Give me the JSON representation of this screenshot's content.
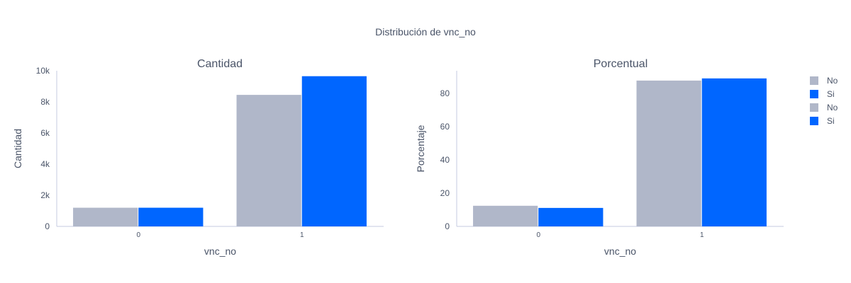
{
  "title": "Distribución de vnc_no",
  "colors": {
    "No": "#b0b7c9",
    "Si": "#0066ff",
    "axis": "#c5cbe0",
    "text": "#4a5468"
  },
  "legend": [
    {
      "label": "No",
      "color": "#b0b7c9"
    },
    {
      "label": "Si",
      "color": "#0066ff"
    },
    {
      "label": "No",
      "color": "#b0b7c9"
    },
    {
      "label": "Si",
      "color": "#0066ff"
    }
  ],
  "chart_data": [
    {
      "type": "bar",
      "title": "Cantidad",
      "xlabel": "vnc_no",
      "ylabel": "Cantidad",
      "categories": [
        "0",
        "1"
      ],
      "series": [
        {
          "name": "No",
          "values": [
            1200,
            8450
          ]
        },
        {
          "name": "Si",
          "values": [
            1200,
            9650
          ]
        }
      ],
      "ylim": [
        0,
        10000
      ],
      "yticks": [
        0,
        2000,
        4000,
        6000,
        8000,
        10000
      ],
      "yticklabels": [
        "0",
        "2k",
        "4k",
        "6k",
        "8k",
        "10k"
      ],
      "grid": false
    },
    {
      "type": "bar",
      "title": "Porcentual",
      "xlabel": "vnc_no",
      "ylabel": "Porcentaje",
      "categories": [
        "0",
        "1"
      ],
      "series": [
        {
          "name": "No",
          "values": [
            12.4,
            87.6
          ]
        },
        {
          "name": "Si",
          "values": [
            11.1,
            88.9
          ]
        }
      ],
      "ylim": [
        0,
        93.5
      ],
      "yticks": [
        0,
        20,
        40,
        60,
        80
      ],
      "yticklabels": [
        "0",
        "20",
        "40",
        "60",
        "80"
      ],
      "grid": false
    }
  ]
}
